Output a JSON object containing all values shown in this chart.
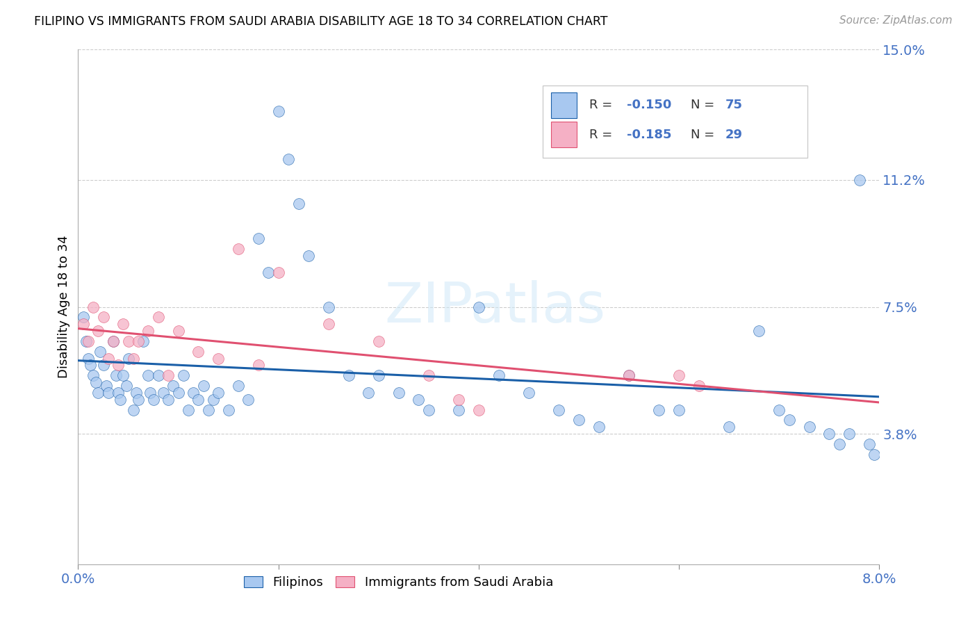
{
  "title": "FILIPINO VS IMMIGRANTS FROM SAUDI ARABIA DISABILITY AGE 18 TO 34 CORRELATION CHART",
  "source": "Source: ZipAtlas.com",
  "ylabel": "Disability Age 18 to 34",
  "xmin": 0.0,
  "xmax": 8.0,
  "ymin": 0.0,
  "ymax": 15.0,
  "yticks": [
    3.8,
    7.5,
    11.2,
    15.0
  ],
  "ytick_labels": [
    "3.8%",
    "7.5%",
    "11.2%",
    "15.0%"
  ],
  "xtick_positions": [
    0.0,
    2.0,
    4.0,
    6.0,
    8.0
  ],
  "xtick_labels": [
    "0.0%",
    "",
    "",
    "",
    "8.0%"
  ],
  "watermark": "ZIPatlas",
  "legend_R1": "-0.150",
  "legend_N1": "75",
  "legend_R2": "-0.185",
  "legend_N2": "29",
  "color_filipino": "#a8c8f0",
  "color_saudi": "#f5b0c5",
  "color_line_filipino": "#1a5fa8",
  "color_line_saudi": "#e05070",
  "color_axis_labels": "#4472c4",
  "color_grid": "#cccccc",
  "fil_x": [
    0.05,
    0.08,
    0.1,
    0.12,
    0.15,
    0.18,
    0.2,
    0.22,
    0.25,
    0.28,
    0.3,
    0.35,
    0.38,
    0.4,
    0.42,
    0.45,
    0.48,
    0.5,
    0.55,
    0.58,
    0.6,
    0.65,
    0.7,
    0.72,
    0.75,
    0.8,
    0.85,
    0.9,
    0.95,
    1.0,
    1.05,
    1.1,
    1.15,
    1.2,
    1.25,
    1.3,
    1.35,
    1.4,
    1.5,
    1.6,
    1.7,
    1.8,
    1.9,
    2.0,
    2.1,
    2.2,
    2.3,
    2.5,
    2.7,
    2.9,
    3.0,
    3.2,
    3.4,
    3.5,
    3.8,
    4.0,
    4.2,
    4.5,
    4.8,
    5.0,
    5.2,
    5.5,
    5.8,
    6.0,
    6.5,
    6.8,
    7.0,
    7.1,
    7.3,
    7.5,
    7.6,
    7.7,
    7.8,
    7.9,
    7.95
  ],
  "fil_y": [
    7.2,
    6.5,
    6.0,
    5.8,
    5.5,
    5.3,
    5.0,
    6.2,
    5.8,
    5.2,
    5.0,
    6.5,
    5.5,
    5.0,
    4.8,
    5.5,
    5.2,
    6.0,
    4.5,
    5.0,
    4.8,
    6.5,
    5.5,
    5.0,
    4.8,
    5.5,
    5.0,
    4.8,
    5.2,
    5.0,
    5.5,
    4.5,
    5.0,
    4.8,
    5.2,
    4.5,
    4.8,
    5.0,
    4.5,
    5.2,
    4.8,
    9.5,
    8.5,
    13.2,
    11.8,
    10.5,
    9.0,
    7.5,
    5.5,
    5.0,
    5.5,
    5.0,
    4.8,
    4.5,
    4.5,
    7.5,
    5.5,
    5.0,
    4.5,
    4.2,
    4.0,
    5.5,
    4.5,
    4.5,
    4.0,
    6.8,
    4.5,
    4.2,
    4.0,
    3.8,
    3.5,
    3.8,
    11.2,
    3.5,
    3.2
  ],
  "sau_x": [
    0.05,
    0.1,
    0.15,
    0.2,
    0.25,
    0.3,
    0.35,
    0.4,
    0.45,
    0.5,
    0.55,
    0.6,
    0.7,
    0.8,
    0.9,
    1.0,
    1.2,
    1.4,
    1.6,
    1.8,
    2.0,
    2.5,
    3.0,
    3.5,
    3.8,
    4.0,
    5.5,
    6.0,
    6.2
  ],
  "sau_y": [
    7.0,
    6.5,
    7.5,
    6.8,
    7.2,
    6.0,
    6.5,
    5.8,
    7.0,
    6.5,
    6.0,
    6.5,
    6.8,
    7.2,
    5.5,
    6.8,
    6.2,
    6.0,
    9.2,
    5.8,
    8.5,
    7.0,
    6.5,
    5.5,
    4.8,
    4.5,
    5.5,
    5.5,
    5.2
  ]
}
